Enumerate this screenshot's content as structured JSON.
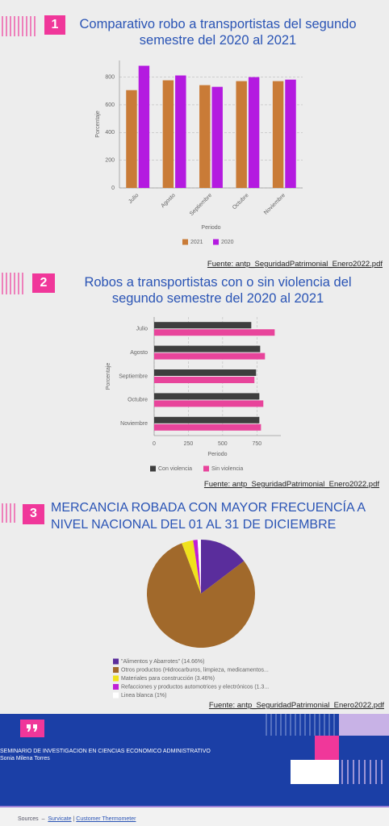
{
  "sections": [
    {
      "number": "1",
      "title": "Comparativo robo a transportistas del segundo semestre del 2020 al 2021",
      "source": "Fuente: antp_SeguridadPatrimonial_Enero2022.pdf"
    },
    {
      "number": "2",
      "title": "Robos a transportistas con o sin violencia del segundo semestre del 2020 al 2021",
      "source": "Fuente: antp_SeguridadPatrimonial_Enero2022.pdf"
    },
    {
      "number": "3",
      "title": "MERCANCIA ROBADA CON MAYOR FRECUENCÍA A NIVEL NACIONAL DEL 01 AL 31 DE DICIEMBRE",
      "source": "Fuente: antp_SeguridadPatrimonial_Enero2022.pdf"
    }
  ],
  "chart_data": [
    {
      "type": "bar",
      "x_label": "Periodo",
      "y_label": "Porcentaje",
      "categories": [
        "Julio",
        "Agosto",
        "Septiembre",
        "Octubre",
        "Noviembre"
      ],
      "series": [
        {
          "name": "2021",
          "color": "#c97b37",
          "values": [
            706,
            777,
            742,
            771,
            771
          ]
        },
        {
          "name": "2020",
          "color": "#b41ae0",
          "values": [
            882,
            812,
            730,
            800,
            782
          ]
        }
      ],
      "ylim": [
        0,
        920
      ],
      "yticks": [
        0,
        200,
        400,
        600,
        800
      ],
      "grid": true,
      "legend": "bottom"
    },
    {
      "type": "hbar",
      "x_label": "Periodo",
      "y_label": "Porcentaje",
      "categories": [
        "Julio",
        "Agosto",
        "Septiembre",
        "Octubre",
        "Noviembre"
      ],
      "series": [
        {
          "name": "Con violencia",
          "color": "#3e3e3e",
          "values": [
            709,
            774,
            744,
            768,
            768
          ]
        },
        {
          "name": "Sin violencia",
          "color": "#e8449b",
          "values": [
            880,
            809,
            732,
            797,
            780
          ]
        }
      ],
      "xlim": [
        0,
        925
      ],
      "xticks": [
        0,
        250,
        500,
        750
      ],
      "grid": true,
      "legend": "bottom"
    },
    {
      "type": "pie",
      "labels": [
        "\"Alimentos y Abarrotes\" (14.66%)",
        "Otros productos (Hidrocarburos, limpieza, medicamentos...",
        "Materiales para construcción (3.46%)",
        "Refacciones y productos automotrices y electrónicos (1.3...",
        "Linea blanca (1%)"
      ],
      "values": [
        14.66,
        79.56,
        3.46,
        1.32,
        1
      ],
      "colors": [
        "#5a2d9c",
        "#a1692b",
        "#f0e21c",
        "#c020d6",
        "#ffffff"
      ],
      "legend": "bottom"
    }
  ],
  "footer": {
    "organization": "SEMINARIO DE INVESTIGACION EN CIENCIAS ECONOMICO ADMINISTRATIVO",
    "author": "Sonia Milena Torres"
  },
  "sources": {
    "label": "Sources",
    "dash": "–",
    "links": [
      "Survicate",
      "Customer Thermometer"
    ],
    "divider": "|"
  }
}
